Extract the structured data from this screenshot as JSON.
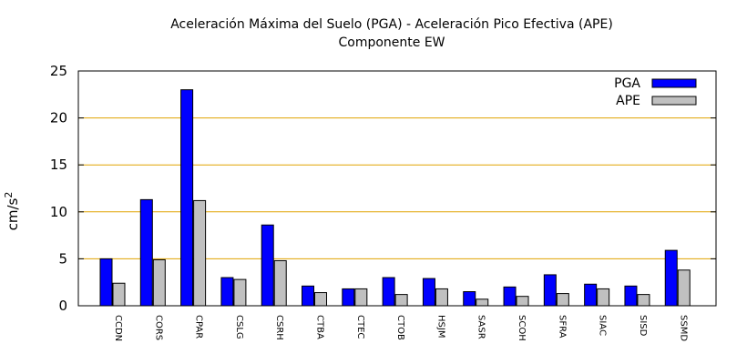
{
  "chart_data": {
    "type": "bar",
    "title": "Aceleración Máxima del Suelo (PGA) -  Aceleración Pico Efectiva (APE)",
    "subtitle": "Componente EW",
    "ylabel": "cm/s",
    "ylabel_sup": "2",
    "xlabel": "",
    "ylim": [
      0,
      25
    ],
    "yticks": [
      "0",
      "5",
      "10",
      "15",
      "20",
      "25"
    ],
    "grid": "horizontal",
    "legend_position": "top-right",
    "categories": [
      "CCDN",
      "CORS",
      "CPAR",
      "CSLG",
      "CSRH",
      "CTBA",
      "CTEC",
      "CTOB",
      "HSJM",
      "SASR",
      "SCOH",
      "SFRA",
      "SIAC",
      "SISD",
      "SSMD"
    ],
    "series": [
      {
        "name": "PGA",
        "color": "#0000ff",
        "values": [
          5.0,
          11.3,
          23.0,
          3.0,
          8.6,
          2.1,
          1.8,
          3.0,
          2.9,
          1.5,
          2.0,
          3.3,
          2.3,
          2.1,
          5.9
        ]
      },
      {
        "name": "APE",
        "color": "#c0c0c0",
        "values": [
          2.4,
          4.9,
          11.2,
          2.8,
          4.8,
          1.4,
          1.8,
          1.2,
          1.8,
          0.7,
          1.0,
          1.3,
          1.8,
          1.2,
          3.8
        ]
      }
    ],
    "gridline_color": "#e1a300"
  }
}
